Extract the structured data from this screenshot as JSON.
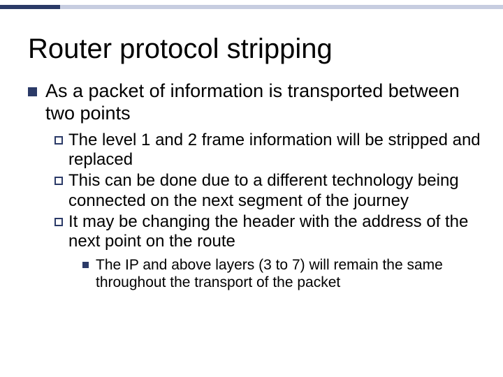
{
  "colors": {
    "accent_dark": "#2b3a67",
    "accent_light": "#c7cde0",
    "text": "#000000",
    "background": "#ffffff"
  },
  "typography": {
    "title_fontsize": 40,
    "level1_fontsize": 27,
    "level2_fontsize": 24,
    "level3_fontsize": 21,
    "font_family": "Arial"
  },
  "title": "Router protocol stripping",
  "level1": {
    "text": "As a packet of information is transported between two points"
  },
  "level2": [
    {
      "text": "The level 1 and 2 frame information will be stripped and replaced"
    },
    {
      "text": "This can be done due to a different technology being connected on the next segment of the journey"
    },
    {
      "text": "It may be changing the header with the address of the next point on the route"
    }
  ],
  "level3": {
    "text": "The IP and above layers (3 to 7) will remain the same throughout the transport of the packet"
  }
}
